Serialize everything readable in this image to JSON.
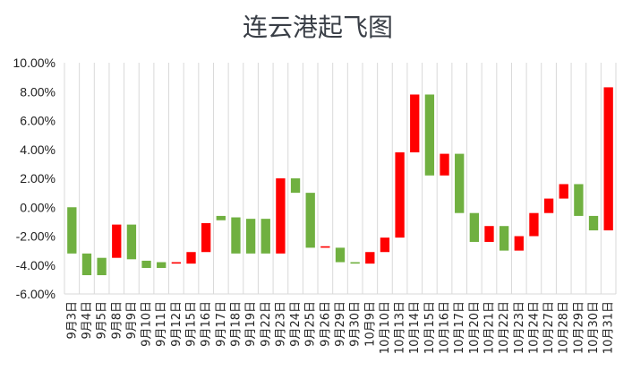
{
  "chart_data": {
    "type": "bar",
    "subtype": "candlestick-waterfall",
    "title": "连云港起飞图",
    "xlabel": "",
    "ylabel": "",
    "ylim": [
      -6,
      10
    ],
    "yticks": [
      -6,
      -4,
      -2,
      0,
      2,
      4,
      6,
      8,
      10
    ],
    "ytick_labels": [
      "-6.00%",
      "-4.00%",
      "-2.00%",
      "0.00%",
      "2.00%",
      "4.00%",
      "6.00%",
      "8.00%",
      "10.00%"
    ],
    "grid": "vertical",
    "legend": "none",
    "up_color": "#ff0000",
    "down_color": "#70b040",
    "categories": [
      "9月3日",
      "9月4日",
      "9月5日",
      "9月8日",
      "9月9日",
      "9月10日",
      "9月11日",
      "9月12日",
      "9月15日",
      "9月16日",
      "9月17日",
      "9月18日",
      "9月19日",
      "9月22日",
      "9月23日",
      "9月24日",
      "9月25日",
      "9月26日",
      "9月29日",
      "9月30日",
      "10月9日",
      "10月10日",
      "10月13日",
      "10月14日",
      "10月15日",
      "10月16日",
      "10月17日",
      "10月20日",
      "10月21日",
      "10月22日",
      "10月23日",
      "10月24日",
      "10月27日",
      "10月28日",
      "10月29日",
      "10月30日",
      "10月31日"
    ],
    "open": [
      0.0,
      -3.2,
      -3.5,
      -3.5,
      -1.2,
      -3.7,
      -3.8,
      -3.9,
      -3.9,
      -3.1,
      -0.6,
      -0.7,
      -0.8,
      -0.8,
      -3.2,
      2.0,
      1.0,
      -2.8,
      -2.8,
      -3.8,
      -3.9,
      -3.1,
      -2.1,
      3.8,
      7.8,
      2.2,
      3.7,
      -0.4,
      -2.4,
      -1.3,
      -3.0,
      -2.0,
      -0.4,
      0.6,
      1.6,
      -0.6,
      -1.6
    ],
    "close": [
      -3.2,
      -4.7,
      -4.7,
      -1.2,
      -3.6,
      -4.2,
      -4.2,
      -3.8,
      -3.1,
      -1.1,
      -0.9,
      -3.2,
      -3.2,
      -3.2,
      2.0,
      1.0,
      -2.8,
      -2.7,
      -3.8,
      -3.9,
      -3.1,
      -2.1,
      3.8,
      7.8,
      2.2,
      3.7,
      -0.4,
      -2.4,
      -1.3,
      -3.0,
      -2.0,
      -0.4,
      0.6,
      1.6,
      -0.6,
      -1.6,
      8.3
    ]
  }
}
